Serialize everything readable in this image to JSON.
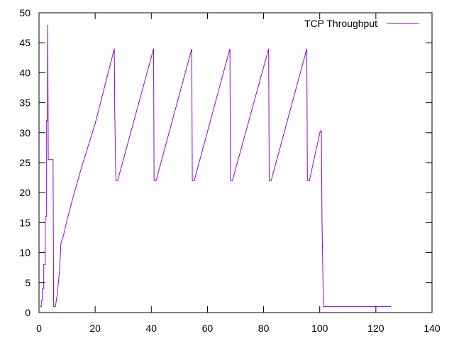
{
  "chart_data": {
    "type": "line",
    "title": "",
    "xlabel": "",
    "ylabel": "",
    "xlim": [
      0,
      140
    ],
    "ylim": [
      0,
      50
    ],
    "xticks": [
      0,
      20,
      40,
      60,
      80,
      100,
      120,
      140
    ],
    "yticks": [
      0,
      5,
      10,
      15,
      20,
      25,
      30,
      35,
      40,
      45,
      50
    ],
    "xtick_labels": [
      "0",
      "20",
      "40",
      "60",
      "80",
      "100",
      "120",
      "140"
    ],
    "ytick_labels": [
      "0",
      "5",
      "10",
      "15",
      "20",
      "25",
      "30",
      "35",
      "40",
      "45",
      "50"
    ],
    "grid": false,
    "legend_position": "top-right",
    "series": [
      {
        "name": "TCP Throughput",
        "color": "#9400d3",
        "points": [
          [
            0.3,
            1.0
          ],
          [
            0.8,
            1.0
          ],
          [
            0.8,
            2.0
          ],
          [
            1.2,
            2.0
          ],
          [
            1.2,
            4.0
          ],
          [
            1.7,
            4.0
          ],
          [
            1.7,
            8.0
          ],
          [
            2.2,
            8.0
          ],
          [
            2.2,
            16.0
          ],
          [
            2.7,
            16.0
          ],
          [
            2.7,
            32.0
          ],
          [
            3.0,
            32.0
          ],
          [
            3.1,
            48.0
          ],
          [
            3.3,
            25.5
          ],
          [
            5.0,
            25.5
          ],
          [
            5.2,
            1.0
          ],
          [
            5.8,
            1.0
          ],
          [
            6.5,
            3.0
          ],
          [
            7.3,
            7.0
          ],
          [
            7.8,
            11.5
          ],
          [
            8.8,
            13.0
          ],
          [
            10.0,
            15.5
          ],
          [
            12.0,
            19.0
          ],
          [
            15.0,
            24.0
          ],
          [
            20.0,
            31.5
          ],
          [
            26.8,
            44.0
          ],
          [
            27.0,
            33.0
          ],
          [
            27.4,
            22.0
          ],
          [
            28.0,
            22.0
          ],
          [
            40.8,
            44.0
          ],
          [
            41.0,
            22.0
          ],
          [
            41.7,
            22.0
          ],
          [
            54.4,
            44.0
          ],
          [
            54.6,
            22.0
          ],
          [
            55.3,
            22.0
          ],
          [
            68.0,
            44.0
          ],
          [
            68.2,
            22.0
          ],
          [
            68.9,
            22.0
          ],
          [
            81.8,
            44.0
          ],
          [
            82.0,
            22.0
          ],
          [
            82.7,
            22.0
          ],
          [
            95.4,
            44.0
          ],
          [
            95.6,
            22.0
          ],
          [
            96.3,
            22.0
          ],
          [
            100.2,
            30.3
          ],
          [
            100.6,
            30.3
          ],
          [
            100.8,
            15.5
          ],
          [
            101.3,
            1.0
          ],
          [
            125.4,
            1.0
          ]
        ]
      }
    ]
  }
}
